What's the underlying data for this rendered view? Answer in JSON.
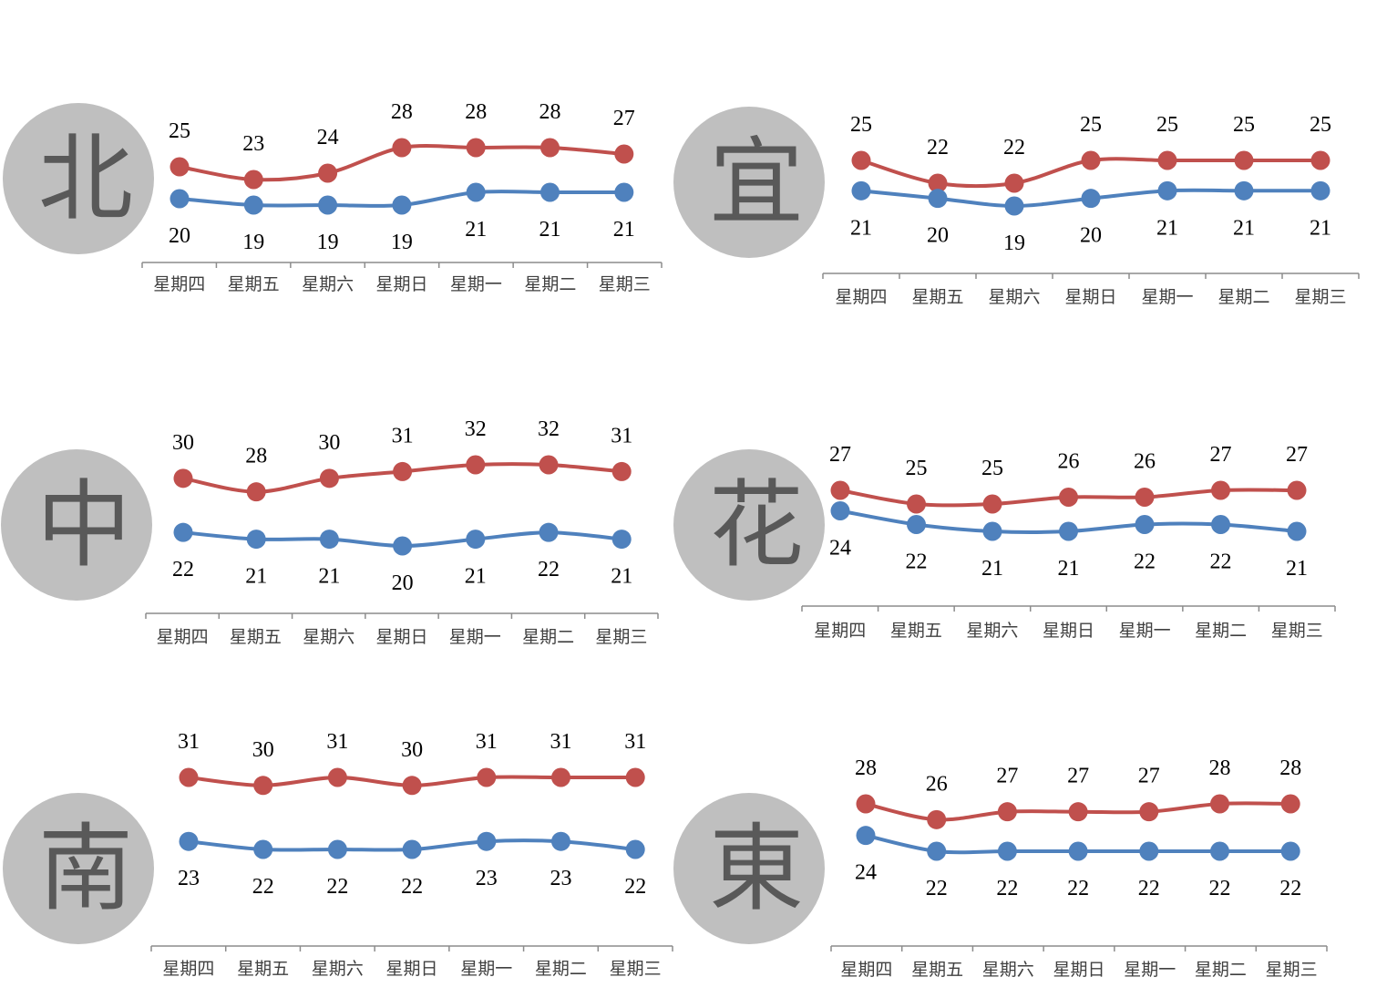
{
  "colors": {
    "high": "#c0504d",
    "low": "#4f81bd",
    "badge": "#bfbfbf",
    "badge_text": "#595959",
    "axis": "#8c8c8c",
    "label": "#000000",
    "tick": "#404040"
  },
  "chart_data": [
    {
      "type": "line",
      "region": "北",
      "categories": [
        "星期四",
        "星期五",
        "星期六",
        "星期日",
        "星期一",
        "星期二",
        "星期三"
      ],
      "series": [
        {
          "key": "high",
          "values": [
            25,
            23,
            24,
            28,
            28,
            28,
            27
          ]
        },
        {
          "key": "low",
          "values": [
            20,
            19,
            19,
            19,
            21,
            21,
            21
          ]
        }
      ]
    },
    {
      "type": "line",
      "region": "宜",
      "categories": [
        "星期四",
        "星期五",
        "星期六",
        "星期日",
        "星期一",
        "星期二",
        "星期三"
      ],
      "series": [
        {
          "key": "high",
          "values": [
            25,
            22,
            22,
            25,
            25,
            25,
            25
          ]
        },
        {
          "key": "low",
          "values": [
            21,
            20,
            19,
            20,
            21,
            21,
            21
          ]
        }
      ]
    },
    {
      "type": "line",
      "region": "中",
      "categories": [
        "星期四",
        "星期五",
        "星期六",
        "星期日",
        "星期一",
        "星期二",
        "星期三"
      ],
      "series": [
        {
          "key": "high",
          "values": [
            30,
            28,
            30,
            31,
            32,
            32,
            31
          ]
        },
        {
          "key": "low",
          "values": [
            22,
            21,
            21,
            20,
            21,
            22,
            21
          ]
        }
      ]
    },
    {
      "type": "line",
      "region": "花",
      "categories": [
        "星期四",
        "星期五",
        "星期六",
        "星期日",
        "星期一",
        "星期二",
        "星期三"
      ],
      "series": [
        {
          "key": "high",
          "values": [
            27,
            25,
            25,
            26,
            26,
            27,
            27
          ]
        },
        {
          "key": "low",
          "values": [
            24,
            22,
            21,
            21,
            22,
            22,
            21
          ]
        }
      ]
    },
    {
      "type": "line",
      "region": "南",
      "categories": [
        "星期四",
        "星期五",
        "星期六",
        "星期日",
        "星期一",
        "星期二",
        "星期三"
      ],
      "series": [
        {
          "key": "high",
          "values": [
            31,
            30,
            31,
            30,
            31,
            31,
            31
          ]
        },
        {
          "key": "low",
          "values": [
            23,
            22,
            22,
            22,
            23,
            23,
            22
          ]
        }
      ]
    },
    {
      "type": "line",
      "region": "東",
      "categories": [
        "星期四",
        "星期五",
        "星期六",
        "星期日",
        "星期一",
        "星期二",
        "星期三"
      ],
      "series": [
        {
          "key": "high",
          "values": [
            28,
            26,
            27,
            27,
            27,
            28,
            28
          ]
        },
        {
          "key": "low",
          "values": [
            24,
            22,
            22,
            22,
            22,
            22,
            22
          ]
        }
      ]
    }
  ]
}
